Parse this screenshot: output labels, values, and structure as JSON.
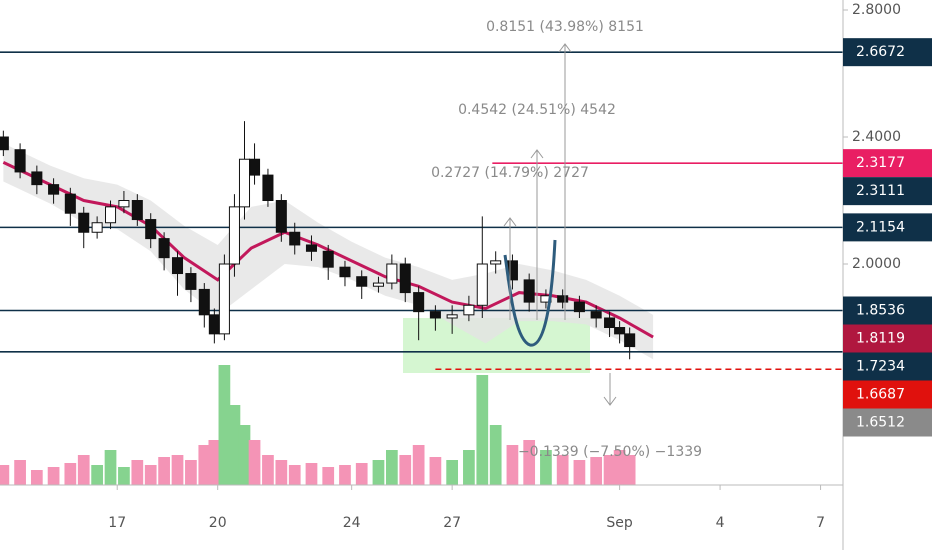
{
  "chart_data": {
    "type": "candlestick",
    "xlim": [
      13.5,
      38.67
    ],
    "ylim": [
      1.304,
      2.8315
    ],
    "xticks": [
      17,
      20,
      24,
      27,
      {
        "value": 32,
        "label": "Sep"
      },
      {
        "value": 35,
        "label": "4"
      },
      {
        "value": 38,
        "label": "7"
      }
    ],
    "yticks": [
      {
        "value": 2.8,
        "label": "2.8000"
      },
      {
        "value": 2.4,
        "label": "2.4000"
      },
      {
        "value": 2.0,
        "label": "2.0000"
      }
    ],
    "up_color": "#ffffff",
    "down_color": "#111111",
    "x": [
      13.6,
      14.1,
      14.6,
      15.1,
      15.6,
      16.0,
      16.4,
      16.8,
      17.2,
      17.6,
      18.0,
      18.4,
      18.8,
      19.2,
      19.6,
      19.9,
      20.2,
      20.5,
      20.8,
      21.1,
      21.5,
      21.9,
      22.3,
      22.8,
      23.3,
      23.8,
      24.3,
      24.8,
      25.2,
      25.6,
      26.0,
      26.5,
      27.0,
      27.5,
      27.9,
      28.3,
      28.8,
      29.3,
      29.8,
      30.3,
      30.8,
      31.3,
      31.7,
      32.0,
      32.3
    ],
    "open": [
      2.4,
      2.36,
      2.29,
      2.25,
      2.22,
      2.16,
      2.1,
      2.13,
      2.18,
      2.2,
      2.14,
      2.08,
      2.02,
      1.97,
      1.92,
      1.84,
      1.78,
      2.0,
      2.18,
      2.33,
      2.28,
      2.2,
      2.1,
      2.06,
      2.04,
      1.99,
      1.96,
      1.93,
      1.94,
      2.0,
      1.91,
      1.85,
      1.83,
      1.84,
      1.87,
      2.0,
      2.01,
      1.95,
      1.88,
      1.9,
      1.88,
      1.85,
      1.83,
      1.8,
      1.78
    ],
    "high": [
      2.42,
      2.38,
      2.31,
      2.27,
      2.24,
      2.18,
      2.15,
      2.2,
      2.23,
      2.22,
      2.16,
      2.1,
      2.04,
      1.99,
      1.94,
      1.86,
      2.03,
      2.22,
      2.45,
      2.38,
      2.3,
      2.22,
      2.13,
      2.09,
      2.06,
      2.01,
      1.98,
      1.96,
      2.03,
      2.02,
      1.93,
      1.87,
      1.87,
      1.9,
      2.15,
      2.04,
      2.03,
      1.97,
      1.92,
      1.92,
      1.9,
      1.87,
      1.85,
      1.82,
      1.8
    ],
    "low": [
      2.34,
      2.27,
      2.22,
      2.19,
      2.12,
      2.05,
      2.08,
      2.11,
      2.16,
      2.12,
      2.05,
      1.98,
      1.9,
      1.88,
      1.8,
      1.75,
      1.76,
      1.96,
      2.14,
      2.25,
      2.18,
      2.07,
      2.03,
      2.01,
      1.95,
      1.93,
      1.89,
      1.91,
      1.92,
      1.88,
      1.76,
      1.79,
      1.78,
      1.82,
      1.83,
      1.97,
      1.92,
      1.85,
      1.86,
      1.86,
      1.83,
      1.8,
      1.77,
      1.75,
      1.7
    ],
    "close": [
      2.36,
      2.29,
      2.25,
      2.22,
      2.16,
      2.1,
      2.13,
      2.18,
      2.2,
      2.14,
      2.08,
      2.02,
      1.97,
      1.92,
      1.84,
      1.78,
      2.0,
      2.18,
      2.33,
      2.28,
      2.2,
      2.1,
      2.06,
      2.04,
      1.99,
      1.96,
      1.93,
      1.94,
      2.0,
      1.91,
      1.85,
      1.83,
      1.84,
      1.87,
      2.0,
      2.01,
      1.95,
      1.88,
      1.9,
      1.88,
      1.85,
      1.83,
      1.8,
      1.78,
      1.74
    ],
    "volume": {
      "up_color": "#86d38f",
      "down_color": "#f494b6",
      "values": [
        20,
        25,
        15,
        18,
        22,
        30,
        20,
        35,
        18,
        25,
        20,
        28,
        30,
        25,
        40,
        45,
        120,
        80,
        60,
        45,
        30,
        25,
        20,
        22,
        18,
        20,
        22,
        25,
        35,
        30,
        40,
        28,
        25,
        35,
        110,
        60,
        40,
        45,
        35,
        30,
        25,
        28,
        30,
        35,
        30
      ]
    },
    "ma": {
      "color": "#c2185b",
      "band_color": "#e3e3e3",
      "x": [
        13.6,
        15,
        16,
        17,
        18,
        19,
        20,
        21,
        22,
        23,
        24,
        25,
        26,
        27,
        28,
        29,
        30,
        31,
        32,
        33
      ],
      "values": [
        2.32,
        2.25,
        2.2,
        2.18,
        2.12,
        2.02,
        1.95,
        2.05,
        2.1,
        2.06,
        2.01,
        1.96,
        1.93,
        1.88,
        1.86,
        1.91,
        1.9,
        1.88,
        1.83,
        1.77
      ],
      "upper": [
        2.38,
        2.31,
        2.27,
        2.25,
        2.2,
        2.12,
        2.06,
        2.18,
        2.2,
        2.13,
        2.07,
        2.02,
        1.99,
        1.95,
        1.97,
        2.0,
        1.98,
        1.95,
        1.9,
        1.84
      ],
      "lower": [
        2.26,
        2.19,
        2.13,
        2.11,
        2.04,
        1.92,
        1.84,
        1.92,
        2.0,
        1.99,
        1.95,
        1.9,
        1.87,
        1.81,
        1.75,
        1.82,
        1.82,
        1.81,
        1.76,
        1.7
      ]
    },
    "levels": [
      {
        "value": 2.6672,
        "color": "#0f3048",
        "line": "solid"
      },
      {
        "value": 2.3177,
        "color": "#e91e63",
        "line": "solid",
        "start": 28.2
      },
      {
        "value": 2.3111,
        "color": "#0f3048",
        "line": "none"
      },
      {
        "value": 2.1154,
        "color": "#0f3048",
        "line": "solid"
      },
      {
        "value": 1.8536,
        "color": "#0f3048",
        "line": "solid"
      },
      {
        "value": 1.8119,
        "color": "#b0173f",
        "line": "none"
      },
      {
        "value": 1.7234,
        "color": "#0f3048",
        "line": "solid"
      },
      {
        "value": 1.6687,
        "color": "#e0110d",
        "line": "dashed",
        "start": 26.5
      },
      {
        "value": 1.6512,
        "color": "#8a8a8a",
        "line": "none"
      }
    ],
    "annotations": [
      "0.8151 (43.98%) 8151",
      "0.4542 (24.51%) 4542",
      "0.2727 (14.79%) 2727",
      "−0.1339 (−7.50%) −1339"
    ]
  }
}
